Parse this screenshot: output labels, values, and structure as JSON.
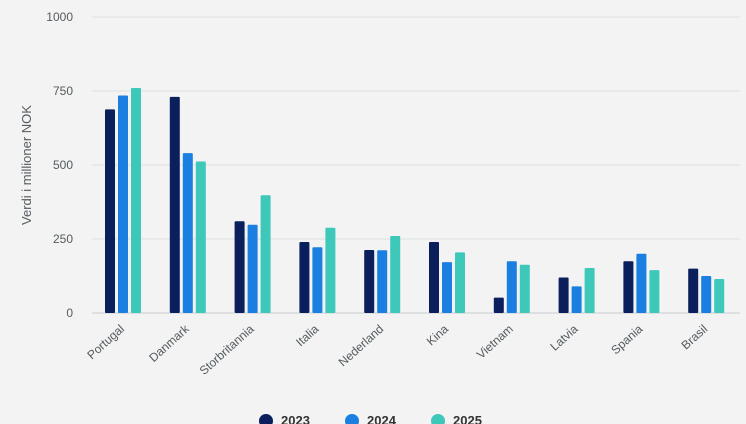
{
  "chart_data": {
    "type": "bar",
    "categories": [
      "Portugal",
      "Danmark",
      "Storbritannia",
      "Italia",
      "Nederland",
      "Kina",
      "Vietnam",
      "Latvia",
      "Spania",
      "Brasil"
    ],
    "series": [
      {
        "name": "2023",
        "color": "#0b1f5c",
        "values": [
          688,
          730,
          310,
          240,
          213,
          240,
          52,
          120,
          175,
          150
        ]
      },
      {
        "name": "2024",
        "color": "#1a7fe0",
        "values": [
          735,
          540,
          298,
          222,
          212,
          172,
          175,
          90,
          200,
          125
        ]
      },
      {
        "name": "2025",
        "color": "#3ec8b9",
        "values": [
          760,
          512,
          398,
          288,
          260,
          205,
          163,
          152,
          145,
          115
        ]
      }
    ],
    "ylabel": "Verdi i millioner NOK",
    "xlabel": "",
    "ylim": [
      0,
      1000
    ],
    "yticks": [
      0,
      250,
      500,
      750,
      1000
    ],
    "grid": true,
    "legend": "bottom"
  }
}
